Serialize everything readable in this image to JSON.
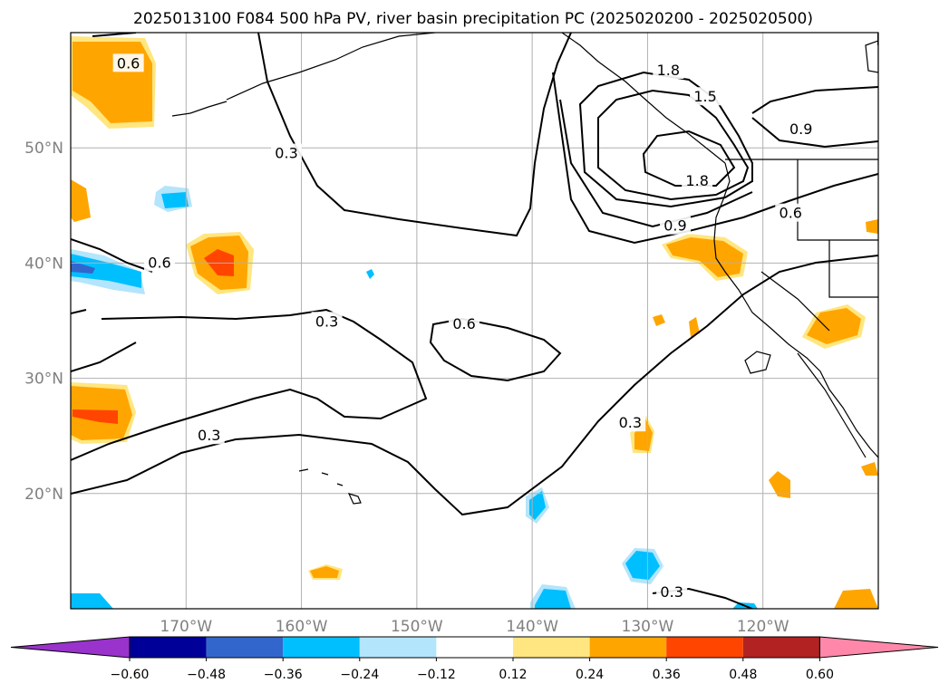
{
  "chart_data": {
    "type": "map",
    "title": "2025013100 F084 500 hPa PV, river basin precipitation PC (2025020200 - 2025020500)",
    "lon_range": [
      -180,
      -110
    ],
    "lat_range": [
      10,
      60
    ],
    "x_ticks": [
      {
        "value": -170,
        "label": "170°W"
      },
      {
        "value": -160,
        "label": "160°W"
      },
      {
        "value": -150,
        "label": "150°W"
      },
      {
        "value": -140,
        "label": "140°W"
      },
      {
        "value": -130,
        "label": "130°W"
      },
      {
        "value": -120,
        "label": "120°W"
      }
    ],
    "y_ticks": [
      {
        "value": 20,
        "label": "20°N"
      },
      {
        "value": 30,
        "label": "30°N"
      },
      {
        "value": 40,
        "label": "40°N"
      },
      {
        "value": 50,
        "label": "50°N"
      }
    ],
    "grid": true,
    "contour_field": "500 hPa PV",
    "contour_labels": [
      {
        "text": "0.6",
        "lon": -175,
        "lat": 57.3
      },
      {
        "text": "0.3",
        "lon": -168,
        "lat": 25.0
      },
      {
        "text": "0.3",
        "lon": -161.3,
        "lat": 49.5
      },
      {
        "text": "0.6",
        "lon": -172.3,
        "lat": 40.0
      },
      {
        "text": "0.3",
        "lon": -157.8,
        "lat": 34.9
      },
      {
        "text": "0.6",
        "lon": -145.9,
        "lat": 34.7
      },
      {
        "text": "1.8",
        "lon": -128.2,
        "lat": 56.7
      },
      {
        "text": "1.5",
        "lon": -125.0,
        "lat": 54.4
      },
      {
        "text": "1.8",
        "lon": -125.7,
        "lat": 47.1
      },
      {
        "text": "0.9",
        "lon": -127.6,
        "lat": 43.2
      },
      {
        "text": "0.6",
        "lon": -117.6,
        "lat": 44.3
      },
      {
        "text": "0.9",
        "lon": -116.7,
        "lat": 51.6
      },
      {
        "text": "0.3",
        "lon": -131.5,
        "lat": 26.1
      },
      {
        "text": "0.3",
        "lon": -127.9,
        "lat": 11.4
      }
    ],
    "colorbar": {
      "levels": [
        -0.6,
        -0.48,
        -0.36,
        -0.24,
        -0.12,
        0.12,
        0.24,
        0.36,
        0.48,
        0.6
      ],
      "tick_labels": [
        "−0.60",
        "−0.48",
        "−0.36",
        "−0.24",
        "−0.12",
        "0.12",
        "0.24",
        "0.36",
        "0.48",
        "0.60"
      ],
      "colors": [
        "#9933cc",
        "#000099",
        "#3366cc",
        "#00bfff",
        "#b3e5fc",
        "#ffffff",
        "#ffe680",
        "#ffa500",
        "#ff4500",
        "#b22222",
        "#ff88aa"
      ],
      "extend": "both"
    }
  }
}
